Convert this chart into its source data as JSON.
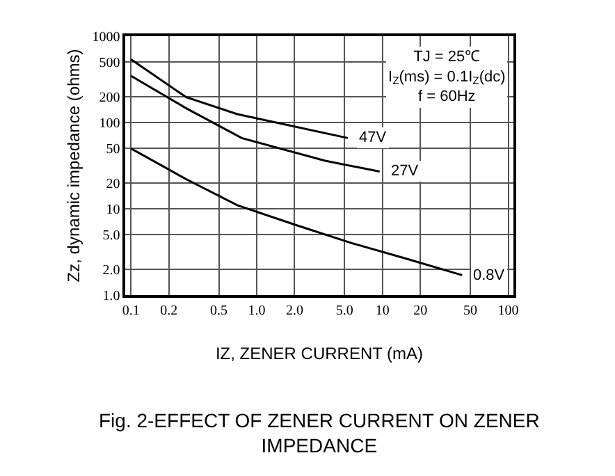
{
  "chart_data": {
    "type": "line",
    "title": "Fig. 2-EFFECT OF ZENER CURRENT ON ZENER IMPEDANCE",
    "xlabel": "IZ, ZENER CURRENT (mA)",
    "ylabel": "Zz, dynamic impedance (ohms)",
    "log": "xy",
    "grid": true,
    "legend": false,
    "marker": "none",
    "line_style": "solid",
    "xlim": [
      0.09,
      110
    ],
    "ylim": [
      1,
      1000
    ],
    "xticks": [
      0.1,
      0.2,
      0.5,
      {
        "value": 1,
        "label": "1.0"
      },
      {
        "value": 2,
        "label": "2.0"
      },
      {
        "value": 5,
        "label": "5.0"
      },
      10,
      20,
      50,
      100
    ],
    "yticks": [
      {
        "value": 1,
        "label": "1.0"
      },
      {
        "value": 2,
        "label": "2.0"
      },
      {
        "value": 5,
        "label": "5.0"
      },
      10,
      20,
      50,
      100,
      200,
      500,
      1000
    ],
    "series": [
      {
        "name": "47V",
        "color": "#000000",
        "x": [
          0.1,
          0.275,
          0.7,
          5.3
        ],
        "values": [
          540,
          196,
          125,
          66
        ]
      },
      {
        "name": "27V",
        "color": "#000000",
        "x": [
          0.1,
          0.275,
          0.76,
          3.5,
          9.5
        ],
        "values": [
          347,
          146,
          66,
          36,
          27
        ]
      },
      {
        "name": "0.8V",
        "color": "#000000",
        "x": [
          0.1,
          0.275,
          0.7,
          2.1,
          5.7,
          16,
          43
        ],
        "values": [
          50,
          22,
          11,
          6.4,
          4.0,
          2.6,
          1.7
        ]
      }
    ],
    "annotations": [
      "TJ = 25℃",
      "I$_{Z}$(ms) = 0.1I$_{Z}$(dc)",
      "f = 60Hz"
    ]
  }
}
